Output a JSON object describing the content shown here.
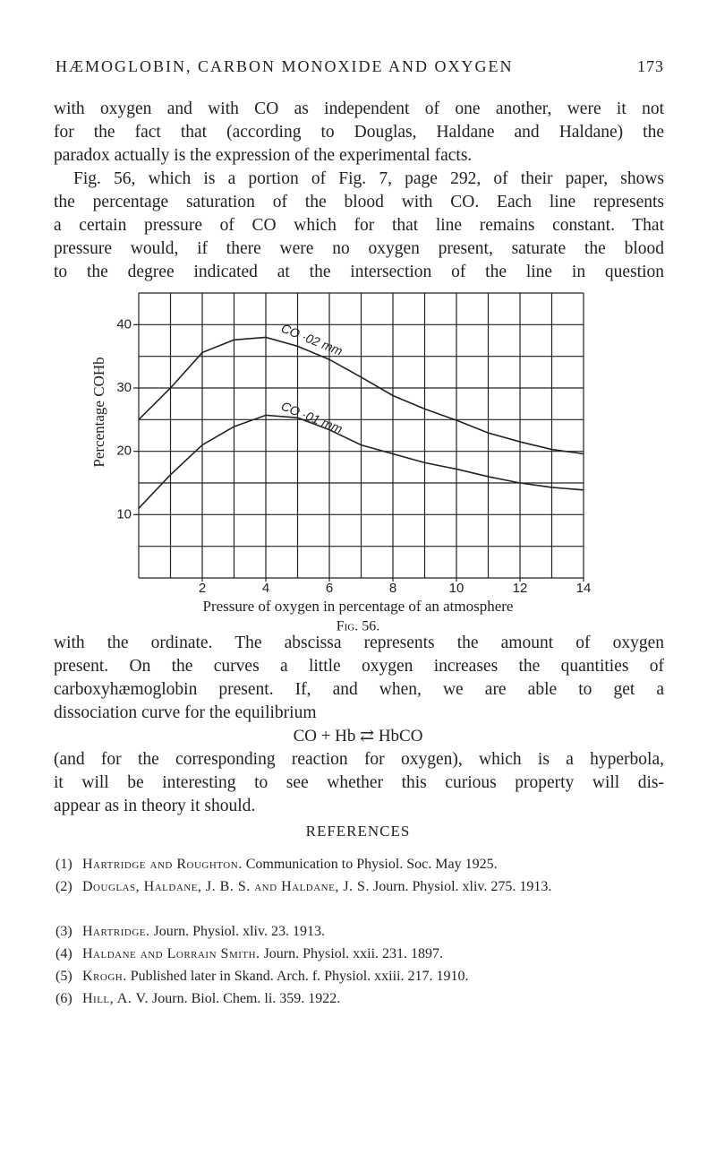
{
  "header": {
    "title": "HÆMOGLOBIN, CARBON MONOXIDE AND OXYGEN",
    "page": "173"
  },
  "text_before": [
    "with oxygen and with CO as independent of one another, were it not",
    "for the fact that (according to Douglas, Haldane and Haldane) the",
    "paradox actually is the expression of the experimental facts.",
    "Fig. 56, which is a portion of Fig. 7, page 292, of their paper, shows",
    "the percentage saturation of the blood with CO. Each line represents",
    "a certain pressure of CO which for that line remains constant. That",
    "pressure would, if there were no oxygen present, saturate the blood",
    "to the degree indicated at the intersection of the line in question"
  ],
  "chart_data": {
    "type": "line",
    "x_label": "Pressure of oxygen in percentage of an atmosphere",
    "y_label": "Percentage COHb",
    "caption": "Fig. 56.",
    "x": [
      0,
      1,
      2,
      3,
      4,
      5,
      6,
      7,
      8,
      9,
      10,
      11,
      12,
      13,
      14
    ],
    "series": [
      {
        "name": "CO ·02 mm",
        "color": "#222222",
        "values": [
          25,
          30,
          35.6,
          37.6,
          38,
          36.6,
          34.5,
          31.7,
          28.8,
          26.7,
          24.9,
          22.9,
          21.5,
          20.3,
          19.6
        ]
      },
      {
        "name": "CO ·01 mm",
        "color": "#222222",
        "values": [
          11,
          16.3,
          21,
          23.9,
          25.7,
          25.3,
          23.4,
          21,
          19.6,
          18.2,
          17.2,
          16,
          15,
          14.3,
          13.9
        ]
      }
    ],
    "xlim": [
      0,
      14
    ],
    "xticks": [
      2,
      4,
      6,
      8,
      10,
      12,
      14
    ],
    "ylim": [
      0,
      45
    ],
    "yticks": [
      10,
      20,
      30,
      40
    ],
    "grid": true
  },
  "text_after": [
    "with the ordinate. The abscissa represents the amount of oxygen",
    "present. On the curves a little oxygen increases the quantities of",
    "carboxyhæmoglobin present. If, and when, we are able to get a",
    "dissociation curve for the equilibrium"
  ],
  "equation": "CO + Hb ⇄ HbCO",
  "text_end": [
    "(and for the corresponding reaction for oxygen), which is a hyperbola,",
    "it will be interesting to see whether this curious property will dis-",
    "appear as in theory it should."
  ],
  "references": {
    "title": "REFERENCES",
    "items": [
      {
        "num": "(1)",
        "author": "Hartridge and Roughton.",
        "text": "Communication to Physiol. Soc. May 1925."
      },
      {
        "num": "(2)",
        "author": "Douglas, Haldane, J. B. S. and Haldane, J. S.",
        "text": "Journ. Physiol. xliv. 275. 1913."
      },
      {
        "num": "(3)",
        "author": "Hartridge.",
        "text": "Journ. Physiol. xliv. 23. 1913."
      },
      {
        "num": "(4)",
        "author": "Haldane and Lorrain Smith.",
        "text": "Journ. Physiol. xxii. 231. 1897."
      },
      {
        "num": "(5)",
        "author": "Krogh.",
        "text": "Published later in Skand. Arch. f. Physiol. xxiii. 217. 1910."
      },
      {
        "num": "(6)",
        "author": "Hill, A. V.",
        "text": "Journ. Biol. Chem. li. 359. 1922."
      }
    ]
  }
}
